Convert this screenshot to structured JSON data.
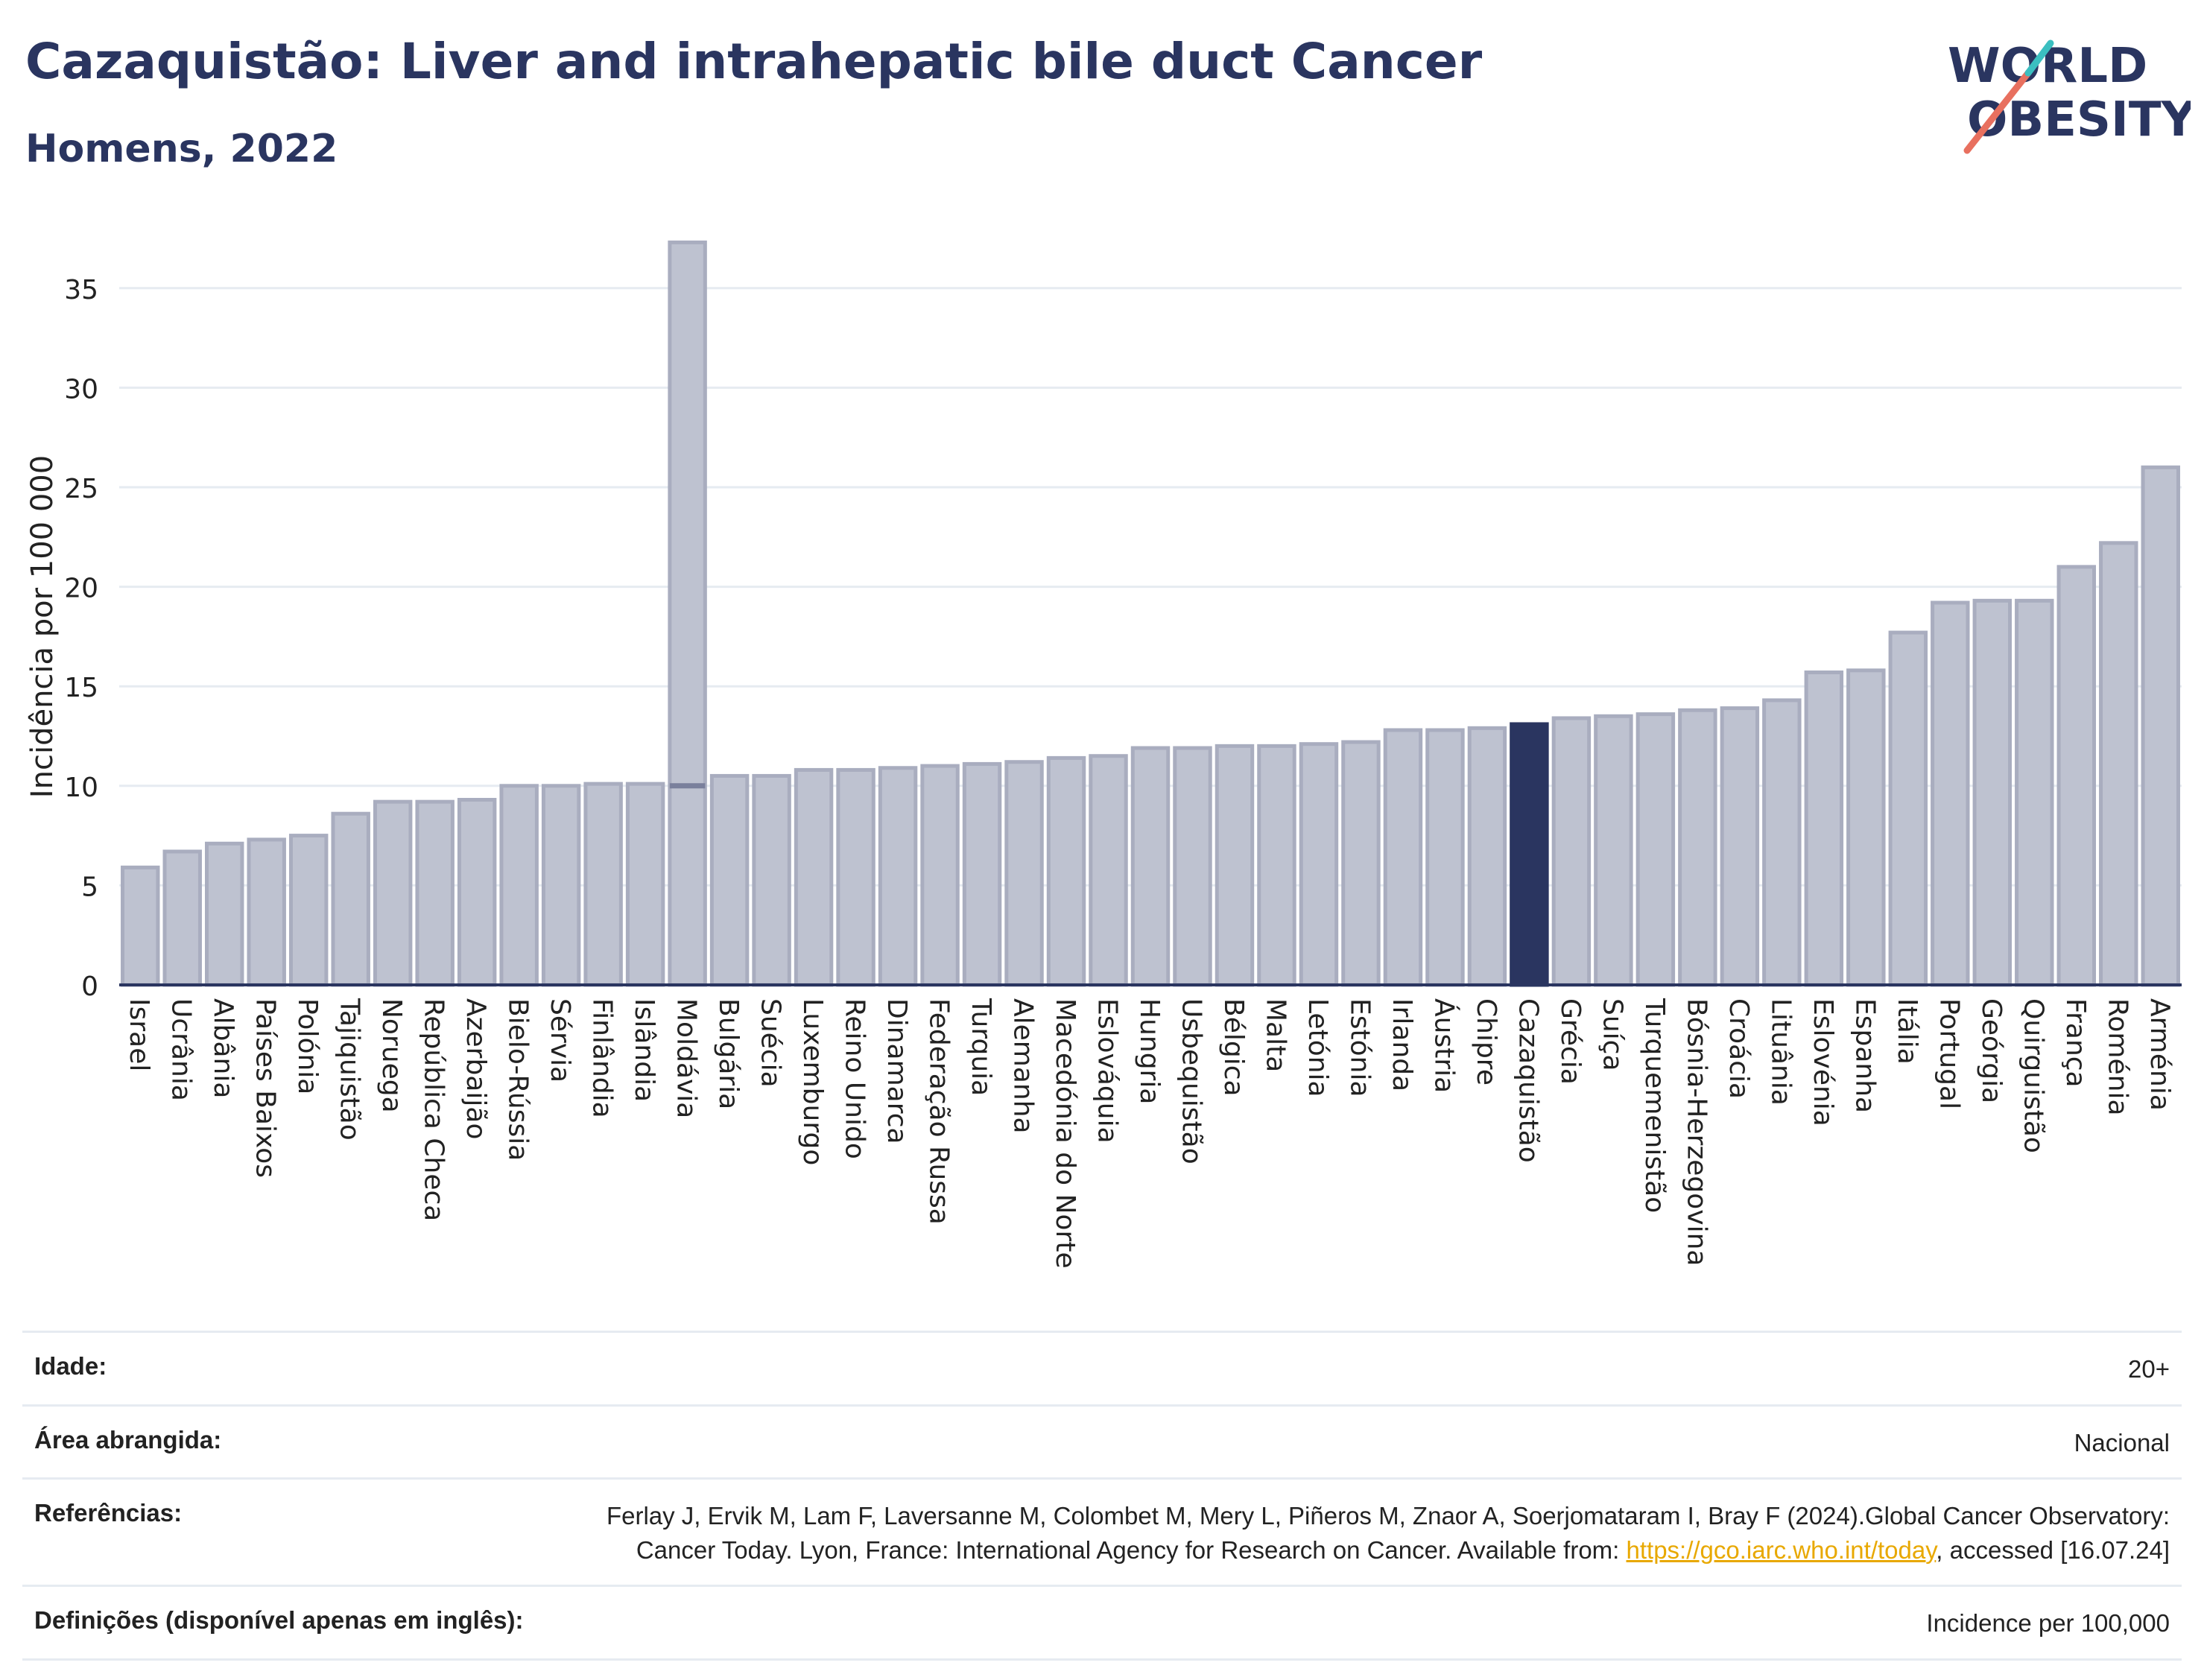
{
  "header": {
    "title": "Cazaquistão: Liver and intrahepatic bile duct Cancer",
    "subtitle": "Homens, 2022"
  },
  "logo": {
    "line1": "WORLD",
    "line2": "OBESITY"
  },
  "chart_data": {
    "type": "bar",
    "ylabel": "Incidência por 100 000",
    "ylim": [
      0,
      37.5
    ],
    "yticks": [
      0,
      5,
      10,
      15,
      20,
      25,
      30,
      35
    ],
    "grid": true,
    "highlight": "Cazaquistão",
    "colors": {
      "bar": "#bec2d0",
      "bar_edge": "#a9adbf",
      "highlight": "#2a3560",
      "grid": "#e6ebf1"
    },
    "categories": [
      "Israel",
      "Ucrânia",
      "Albânia",
      "Países Baixos",
      "Polónia",
      "Tajiquistão",
      "Noruega",
      "República Checa",
      "Azerbaijão",
      "Bielo-Rússia",
      "Sérvia",
      "Finlândia",
      "Islândia",
      "Moldávia",
      "Bulgária",
      "Suécia",
      "Luxemburgo",
      "Reino Unido",
      "Dinamarca",
      "Federação Russa",
      "Turquia",
      "Alemanha",
      "Macedónia do Norte",
      "Eslováquia",
      "Hungria",
      "Usbequistão",
      "Bélgica",
      "Malta",
      "Letónia",
      "Estónia",
      "Irlanda",
      "Áustria",
      "Chipre",
      "Cazaquistão",
      "Grécia",
      "Suíça",
      "Turquemenistão",
      "Bósnia-Herzegovina",
      "Croácia",
      "Lituânia",
      "Eslovénia",
      "Espanha",
      "Itália",
      "Portugal",
      "Geórgia",
      "Quirguistão",
      "França",
      "Roménia",
      "Arménia"
    ],
    "values": [
      5.9,
      6.7,
      7.1,
      7.3,
      7.5,
      8.6,
      9.2,
      9.2,
      9.3,
      10.0,
      10.0,
      10.1,
      10.1,
      37.3,
      10.5,
      10.5,
      10.8,
      10.8,
      10.9,
      11.0,
      11.1,
      11.2,
      11.4,
      11.5,
      11.9,
      11.9,
      12.0,
      12.0,
      12.1,
      12.2,
      12.8,
      12.8,
      12.9,
      13.1,
      13.4,
      13.5,
      13.6,
      13.8,
      13.9,
      14.3,
      15.7,
      15.8,
      17.7,
      19.2,
      19.3,
      19.3,
      21.0,
      22.2,
      26.0
    ],
    "inner_marks": {
      "Moldávia": 10.0
    }
  },
  "meta": {
    "rows": [
      {
        "label": "Idade:",
        "value": "20+"
      },
      {
        "label": "Área abrangida:",
        "value": "Nacional"
      },
      {
        "label": "Referências:",
        "value_pre": "Ferlay J, Ervik M, Lam F, Laversanne M, Colombet M, Mery L, Piñeros M, Znaor A, Soerjomataram I, Bray F (2024).Global Cancer Observatory: Cancer Today. Lyon, France: International Agency for Research on Cancer. Available from: ",
        "link": "https://gco.iarc.who.int/today",
        "value_post": ", accessed [16.07.24]"
      },
      {
        "label": "Definições (disponível apenas em inglês):",
        "value": "Incidence per 100,000"
      }
    ]
  }
}
